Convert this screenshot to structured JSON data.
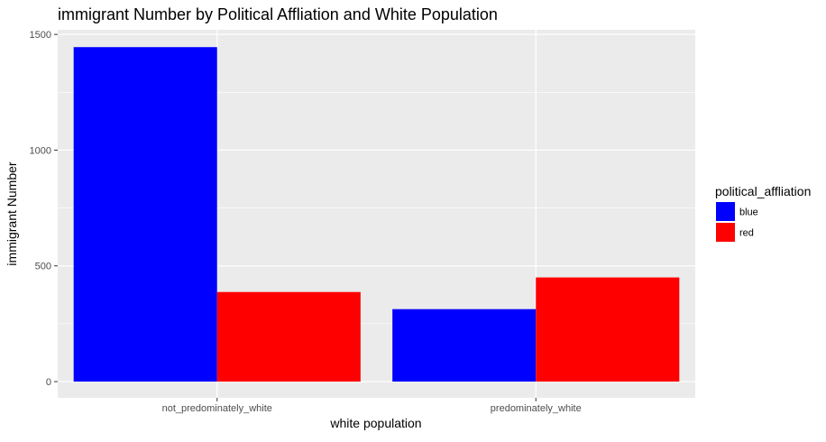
{
  "chart_data": {
    "type": "bar",
    "title": "immigrant Number by Political Affliation and White Population",
    "xlabel": "white population",
    "ylabel": "immigrant Number",
    "categories": [
      "not_predominately_white",
      "predominately_white"
    ],
    "series": [
      {
        "name": "blue",
        "values": [
          1445,
          313
        ],
        "color": "#0000ff"
      },
      {
        "name": "red",
        "values": [
          387,
          450
        ],
        "color": "#ff0000"
      }
    ],
    "ylim": [
      -70,
      1520
    ],
    "yticks": [
      0,
      500,
      1000,
      1500
    ],
    "yticklabels": [
      "0",
      "500",
      "1000",
      "1500"
    ],
    "grid": true,
    "legend": {
      "title": "political_affliation",
      "position": "right",
      "entries": [
        "blue",
        "red"
      ]
    },
    "panel_color": "#ebebeb",
    "grid_color": "#ffffff"
  }
}
